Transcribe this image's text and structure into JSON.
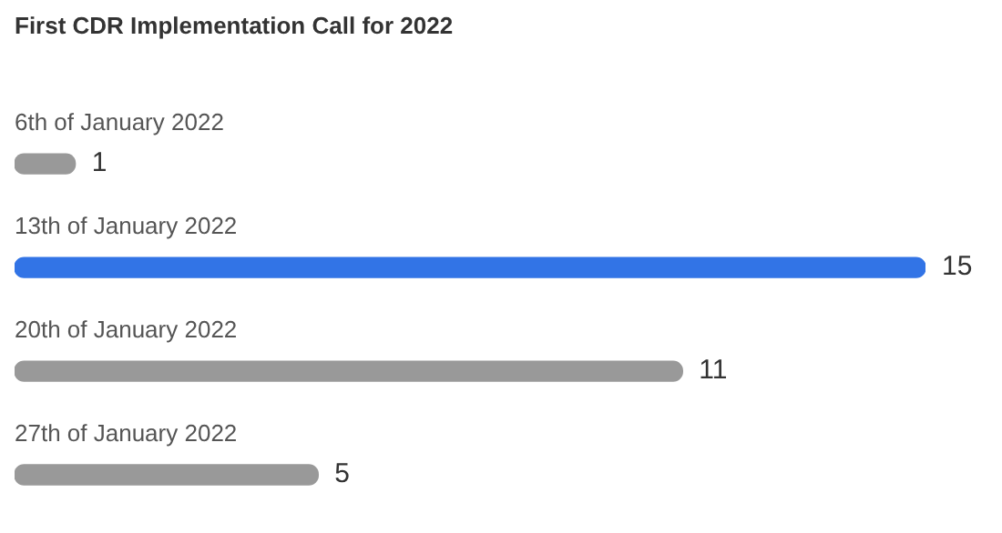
{
  "chart_data": {
    "type": "bar",
    "orientation": "horizontal",
    "title": "First CDR Implementation Call for 2022",
    "categories": [
      "6th of January 2022",
      "13th of January 2022",
      "20th of January 2022",
      "27th of January 2022"
    ],
    "values": [
      1,
      15,
      11,
      5
    ],
    "colors": [
      "#999999",
      "#3274e6",
      "#999999",
      "#999999"
    ],
    "data_labels": true,
    "legend": false
  }
}
